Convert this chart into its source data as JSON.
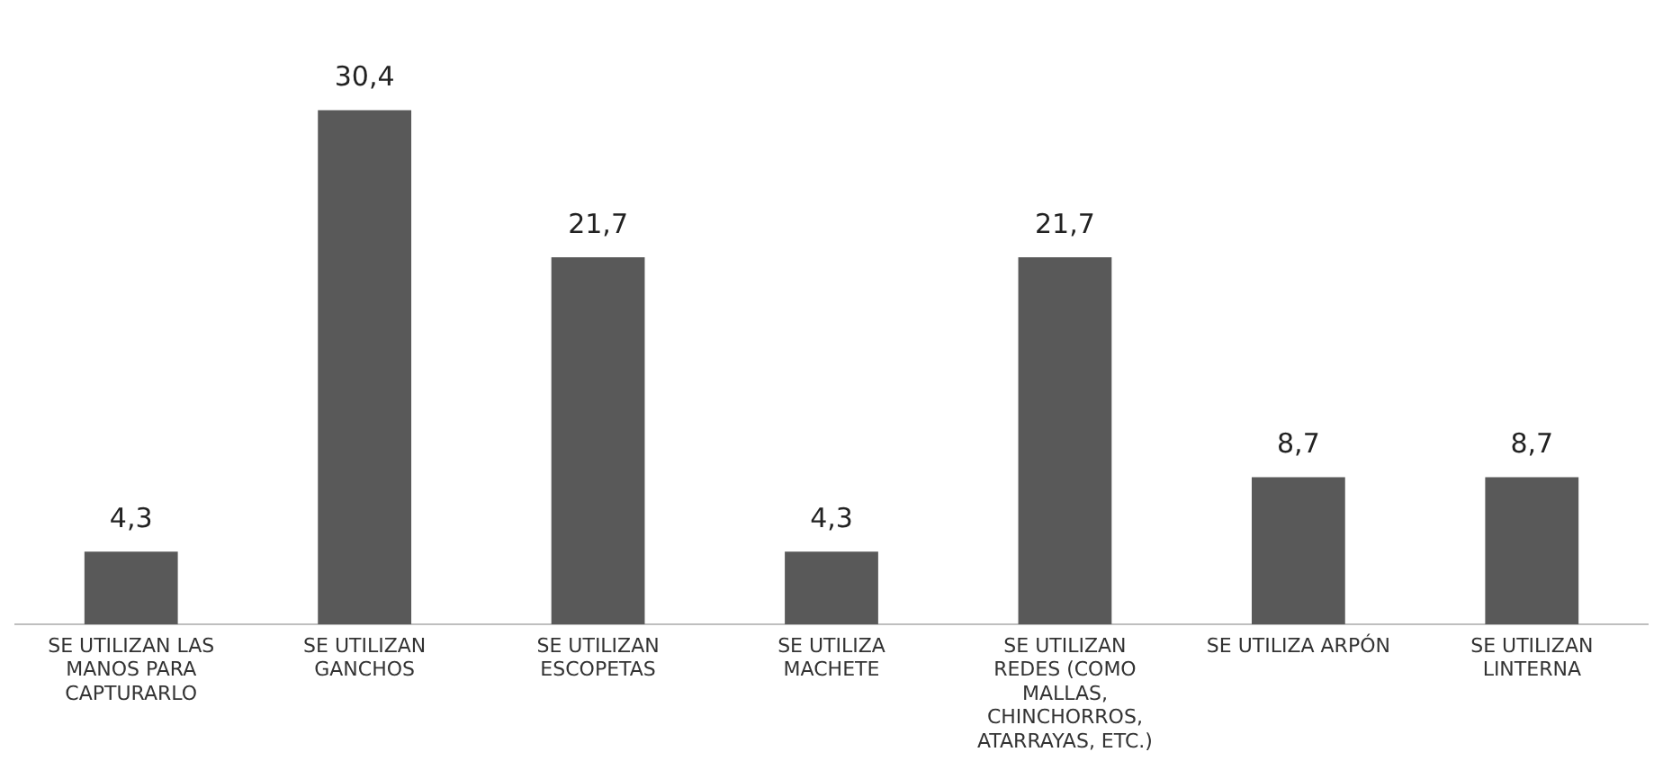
{
  "chart_data": {
    "type": "bar",
    "categories": [
      "SE UTILIZAN LAS MANOS PARA CAPTURARLO",
      "SE UTILIZAN GANCHOS",
      "SE UTILIZAN ESCOPETAS",
      "SE UTILIZA MACHETE",
      "SE UTILIZAN REDES (COMO MALLAS, CHINCHORROS, ATARRAYAS, ETC.)",
      "SE UTILIZA ARPÓN",
      "SE UTILIZAN LINTERNA"
    ],
    "values": [
      4.3,
      30.4,
      21.7,
      4.3,
      21.7,
      8.7,
      8.7
    ],
    "value_labels": [
      "4,3",
      "30,4",
      "21,7",
      "4,3",
      "21,7",
      "8,7",
      "8,7"
    ],
    "color": "#595959",
    "grid": false,
    "legend": false
  }
}
